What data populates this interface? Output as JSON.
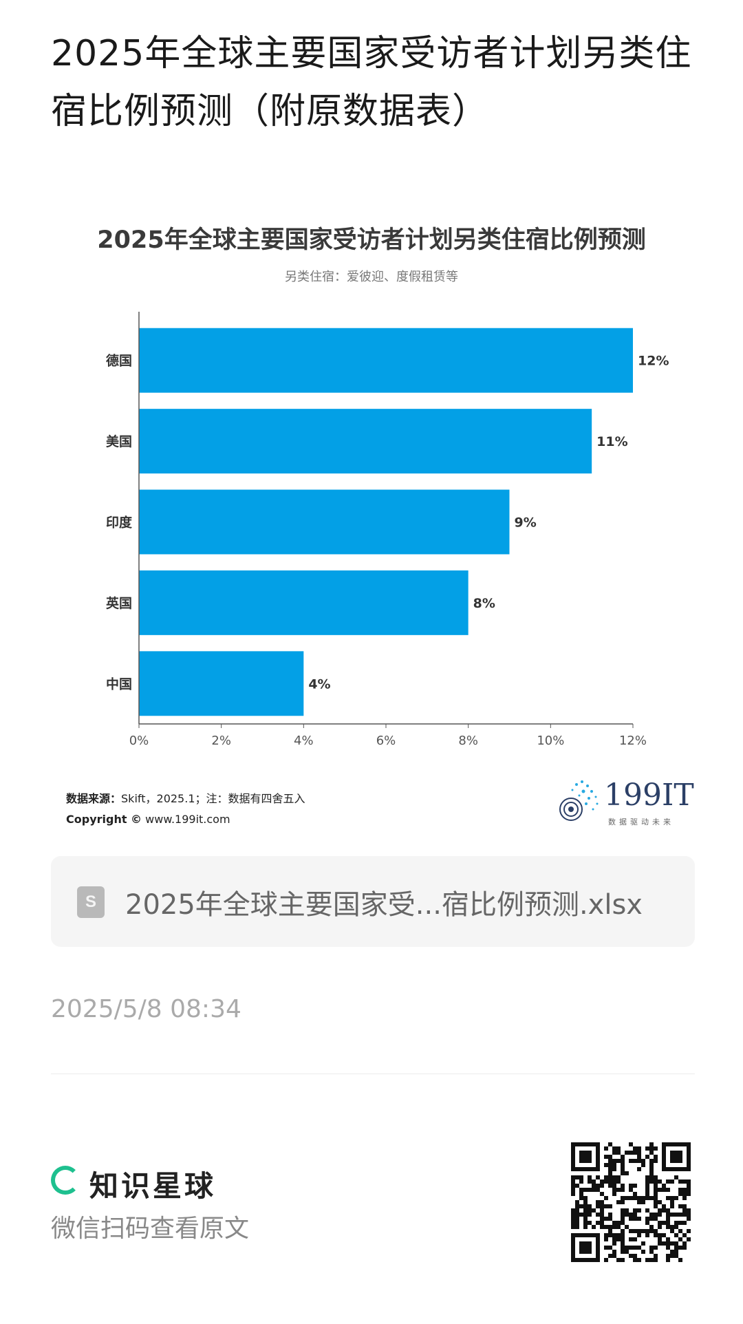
{
  "page": {
    "title": "2025年全球主要国家受访者计划另类住宿比例预测（附原数据表）"
  },
  "chart_data": {
    "type": "bar",
    "orientation": "horizontal",
    "title": "2025年全球主要国家受访者计划另类住宿比例预测",
    "subtitle": "另类住宿：爱彼迎、度假租赁等",
    "categories": [
      "德国",
      "美国",
      "印度",
      "英国",
      "中国"
    ],
    "values": [
      12,
      11,
      9,
      8,
      4
    ],
    "value_labels": [
      "12%",
      "11%",
      "9%",
      "8%",
      "4%"
    ],
    "xticks": [
      "0%",
      "2%",
      "4%",
      "6%",
      "8%",
      "10%",
      "12%"
    ],
    "xlim": [
      0,
      12
    ],
    "grid": false,
    "bar_color": "#03a0e6"
  },
  "source": {
    "label": "数据来源：",
    "text": "Skift，2025.1；注：数据有四舍五入",
    "copyright_label": "Copyright ©",
    "copyright_url": "www.199it.com"
  },
  "brand": {
    "name": "199IT",
    "tagline": "数据驱动未来"
  },
  "file": {
    "name": "2025年全球主要国家受...宿比例预测.xlsx"
  },
  "timestamp": "2025/5/8 08:34",
  "footer": {
    "app_name": "知识星球",
    "scan_text": "微信扫码查看原文",
    "accent_color": "#1ec08f"
  }
}
